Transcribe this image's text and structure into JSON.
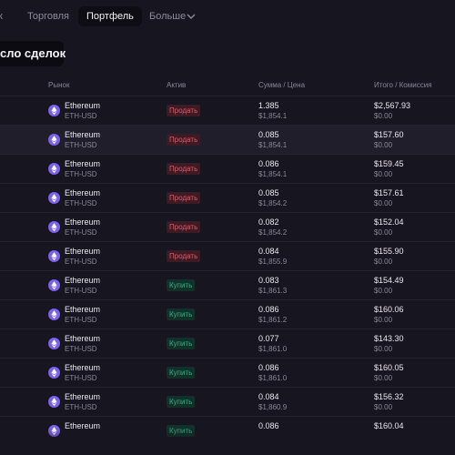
{
  "nav": {
    "items": [
      "к",
      "Торговля",
      "Портфель",
      "Больше"
    ],
    "active": 2
  },
  "button": {
    "label": "сло сделок"
  },
  "table": {
    "headers": [
      "Рынок",
      "Актив",
      "Сумма / Цена",
      "Итого / Комиссия"
    ],
    "rows": [
      {
        "market": "Ethereum",
        "symbol": "ETH-USD",
        "side": "Продать",
        "kind": "sell",
        "amount": "1.385",
        "price": "$1,854.1",
        "total": "$2,567.93",
        "fee": "$0.00"
      },
      {
        "market": "Ethereum",
        "symbol": "ETH-USD",
        "side": "Продать",
        "kind": "sell",
        "amount": "0.085",
        "price": "$1,854.1",
        "total": "$157.60",
        "fee": "$0.00"
      },
      {
        "market": "Ethereum",
        "symbol": "ETH-USD",
        "side": "Продать",
        "kind": "sell",
        "amount": "0.086",
        "price": "$1,854.1",
        "total": "$159.45",
        "fee": "$0.00"
      },
      {
        "market": "Ethereum",
        "symbol": "ETH-USD",
        "side": "Продать",
        "kind": "sell",
        "amount": "0.085",
        "price": "$1,854.2",
        "total": "$157.61",
        "fee": "$0.00"
      },
      {
        "market": "Ethereum",
        "symbol": "ETH-USD",
        "side": "Продать",
        "kind": "sell",
        "amount": "0.082",
        "price": "$1,854.2",
        "total": "$152.04",
        "fee": "$0.00"
      },
      {
        "market": "Ethereum",
        "symbol": "ETH-USD",
        "side": "Продать",
        "kind": "sell",
        "amount": "0.084",
        "price": "$1,855.9",
        "total": "$155.90",
        "fee": "$0.00"
      },
      {
        "market": "Ethereum",
        "symbol": "ETH-USD",
        "side": "Купить",
        "kind": "buy",
        "amount": "0.083",
        "price": "$1,861.3",
        "total": "$154.49",
        "fee": "$0.00"
      },
      {
        "market": "Ethereum",
        "symbol": "ETH-USD",
        "side": "Купить",
        "kind": "buy",
        "amount": "0.086",
        "price": "$1,861.2",
        "total": "$160.06",
        "fee": "$0.00"
      },
      {
        "market": "Ethereum",
        "symbol": "ETH-USD",
        "side": "Купить",
        "kind": "buy",
        "amount": "0.077",
        "price": "$1,861.0",
        "total": "$143.30",
        "fee": "$0.00"
      },
      {
        "market": "Ethereum",
        "symbol": "ETH-USD",
        "side": "Купить",
        "kind": "buy",
        "amount": "0.086",
        "price": "$1,861.0",
        "total": "$160.05",
        "fee": "$0.00"
      },
      {
        "market": "Ethereum",
        "symbol": "ETH-USD",
        "side": "Купить",
        "kind": "buy",
        "amount": "0.084",
        "price": "$1,860.9",
        "total": "$156.32",
        "fee": "$0.00"
      },
      {
        "market": "Ethereum",
        "side": "Купить",
        "kind": "buy",
        "amount": "0.086",
        "total": "$160.04"
      }
    ],
    "highlighted": 1
  }
}
